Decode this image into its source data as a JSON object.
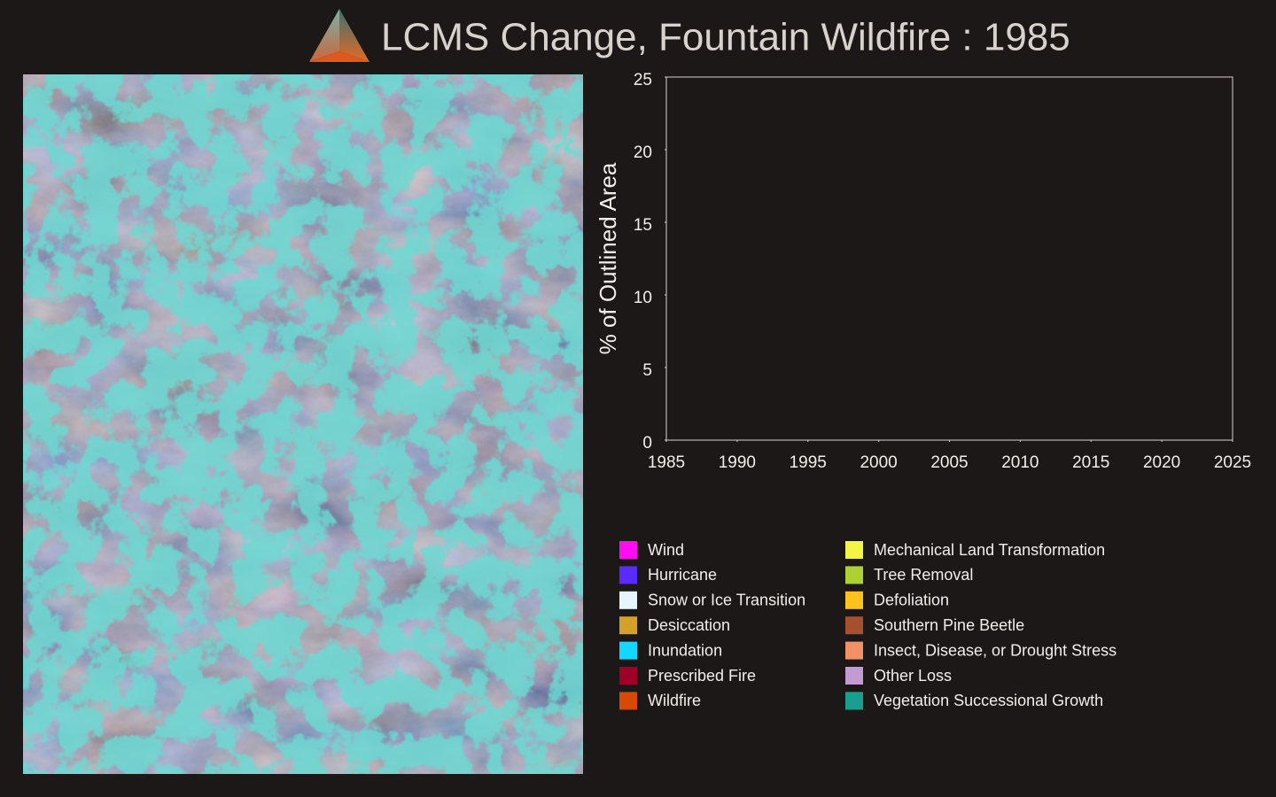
{
  "chart_data": {
    "type": "line",
    "title": "LCMS Change, Fountain Wildfire : 1985",
    "y_label": "% of Outlined Area",
    "x": [],
    "xlim": [
      1985,
      2025
    ],
    "xticks": [
      1985,
      1990,
      1995,
      2000,
      2005,
      2010,
      2015,
      2020,
      2025
    ],
    "ylim": [
      0,
      25
    ],
    "yticks": [
      0,
      5,
      10,
      15,
      20,
      25
    ],
    "series": [
      {
        "name": "Wind",
        "color": "#ff0cf0",
        "values": []
      },
      {
        "name": "Hurricane",
        "color": "#5a2bff",
        "values": []
      },
      {
        "name": "Snow or Ice Transition",
        "color": "#e6f4ff",
        "values": []
      },
      {
        "name": "Desiccation",
        "color": "#d4a02a",
        "values": []
      },
      {
        "name": "Inundation",
        "color": "#12d8ff",
        "values": []
      },
      {
        "name": "Prescribed Fire",
        "color": "#a10026",
        "values": []
      },
      {
        "name": "Wildfire",
        "color": "#d64a05",
        "values": []
      },
      {
        "name": "Mechanical Land Transformation",
        "color": "#f5f545",
        "values": []
      },
      {
        "name": "Tree Removal",
        "color": "#acd133",
        "values": []
      },
      {
        "name": "Defoliation",
        "color": "#ffc21c",
        "values": []
      },
      {
        "name": "Southern Pine Beetle",
        "color": "#a6512e",
        "values": []
      },
      {
        "name": "Insect, Disease, or Drought Stress",
        "color": "#f29167",
        "values": []
      },
      {
        "name": "Other Loss",
        "color": "#c39bd3",
        "values": []
      },
      {
        "name": "Vegetation Successional Growth",
        "color": "#1a9e90",
        "values": []
      }
    ]
  }
}
